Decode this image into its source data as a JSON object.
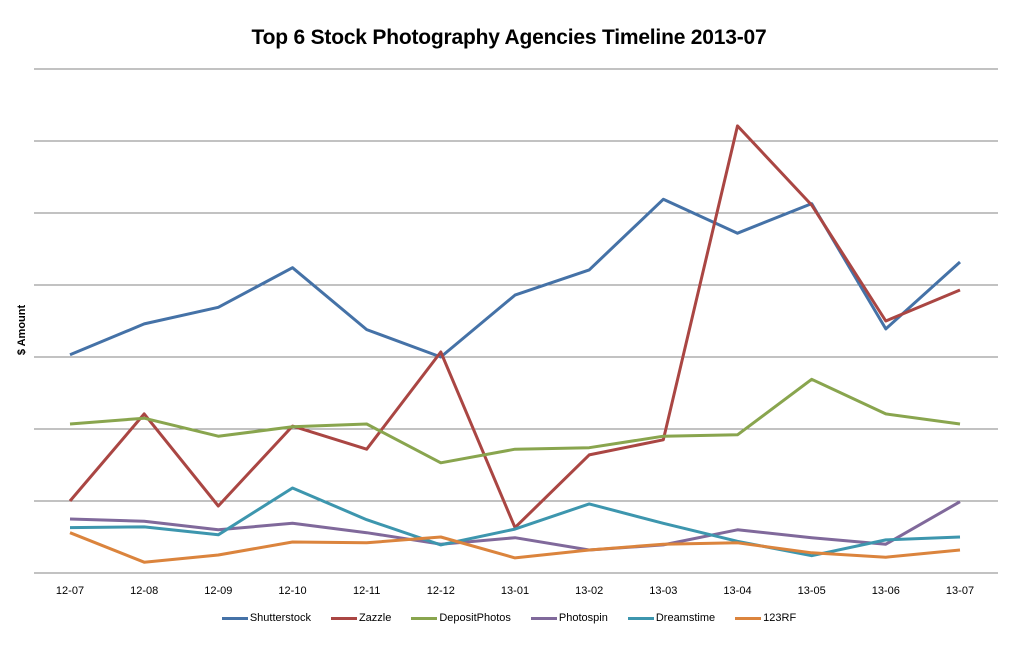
{
  "chart_data": {
    "type": "line",
    "title": "Top 6 Stock Photography Agencies Timeline 2013-07",
    "xlabel": "",
    "ylabel": "$ Amount",
    "y_tick_labels_visible": false,
    "ylim": [
      0,
      7
    ],
    "y_units_note": "values in gridline units (no numeric y labels shown)",
    "grid": true,
    "legend_position": "bottom",
    "categories": [
      "12-07",
      "12-08",
      "12-09",
      "12-10",
      "12-11",
      "12-12",
      "13-01",
      "13-02",
      "13-03",
      "13-04",
      "13-05",
      "13-06",
      "13-07"
    ],
    "series": [
      {
        "name": "Shutterstock",
        "color": "#4572A7",
        "values": [
          3.03,
          3.46,
          3.69,
          4.24,
          3.38,
          3.0,
          3.86,
          4.21,
          5.19,
          4.72,
          5.13,
          3.39,
          4.32
        ]
      },
      {
        "name": "Zazzle",
        "color": "#AA4643",
        "values": [
          1.0,
          2.21,
          0.93,
          2.04,
          1.72,
          3.07,
          0.63,
          1.64,
          1.85,
          6.21,
          5.11,
          3.5,
          3.93
        ]
      },
      {
        "name": "DepositPhotos",
        "color": "#89A54E",
        "values": [
          2.07,
          2.15,
          1.9,
          2.03,
          2.07,
          1.53,
          1.72,
          1.74,
          1.9,
          1.92,
          2.69,
          2.21,
          2.07
        ]
      },
      {
        "name": "Photospin",
        "color": "#80699B",
        "values": [
          0.75,
          0.72,
          0.6,
          0.69,
          0.56,
          0.4,
          0.49,
          0.32,
          0.39,
          0.6,
          0.49,
          0.4,
          0.99
        ]
      },
      {
        "name": "Dreamstime",
        "color": "#3D96AE",
        "values": [
          0.63,
          0.64,
          0.53,
          1.18,
          0.74,
          0.39,
          0.61,
          0.96,
          0.69,
          0.44,
          0.24,
          0.46,
          0.5
        ]
      },
      {
        "name": "123RF",
        "color": "#DB843D",
        "values": [
          0.56,
          0.15,
          0.25,
          0.43,
          0.42,
          0.5,
          0.21,
          0.32,
          0.4,
          0.42,
          0.28,
          0.22,
          0.32
        ]
      }
    ]
  },
  "legend": {
    "items": [
      {
        "label": "Shutterstock",
        "color": "#4572A7"
      },
      {
        "label": "Zazzle",
        "color": "#AA4643"
      },
      {
        "label": "DepositPhotos",
        "color": "#89A54E"
      },
      {
        "label": "Photospin",
        "color": "#80699B"
      },
      {
        "label": "Dreamstime",
        "color": "#3D96AE"
      },
      {
        "label": "123RF",
        "color": "#DB843D"
      }
    ]
  }
}
